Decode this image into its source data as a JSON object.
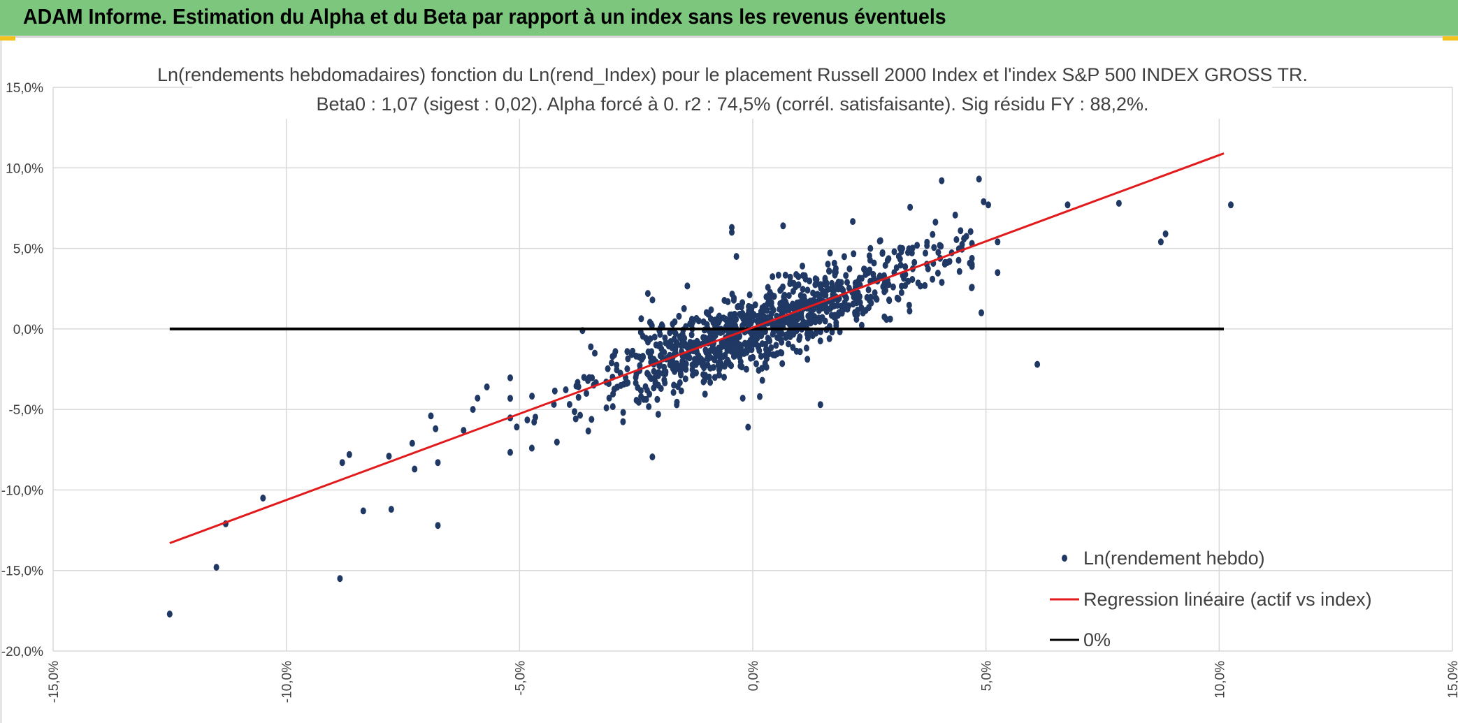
{
  "header": {
    "title": "ADAM Informe. Estimation du Alpha et du Beta par rapport à un index sans les revenus éventuels"
  },
  "colors": {
    "header_bg": "#7dc67d",
    "points": "#203864",
    "regression": "#e31a1c",
    "zero_line": "#000000",
    "grid": "#d9d9d9",
    "accent": "#f2c21b"
  },
  "chart_data": {
    "type": "scatter",
    "title_line1": "Ln(rendements hebdomadaires) fonction du Ln(rend_Index) pour le placement Russell 2000 Index et l'index S&P 500 INDEX GROSS TR.",
    "title_line2": "Beta0 : 1,07 (sigest : 0,02). Alpha forcé à 0. r2 : 74,5% (corrél. satisfaisante). Sig résidu FY : 88,2%.",
    "xlim": [
      -0.15,
      0.15
    ],
    "ylim": [
      -0.2,
      0.15
    ],
    "x_ticks": [
      -0.15,
      -0.1,
      -0.05,
      0.0,
      0.05,
      0.1,
      0.15
    ],
    "x_tick_labels": [
      "-15,0%",
      "-10,0%",
      "-5,0%",
      "0,0%",
      "5,0%",
      "10,0%",
      "15,0%"
    ],
    "y_ticks": [
      0.15,
      0.1,
      0.05,
      0.0,
      -0.05,
      -0.1,
      -0.15,
      -0.2
    ],
    "y_tick_labels": [
      "15,0%",
      "10,0%",
      "5,0%",
      "0,0%",
      "-5,0%",
      "-10,0%",
      "-15,0%",
      "-20,0%"
    ],
    "grid": true,
    "legend_position": "bottom-right",
    "series": [
      {
        "name": "Ln(rendement hebdo)",
        "kind": "scatter",
        "outliers": [
          [
            -0.125,
            -0.177
          ],
          [
            -0.115,
            -0.148
          ],
          [
            -0.113,
            -0.121
          ],
          [
            -0.105,
            -0.105
          ],
          [
            -0.0885,
            -0.155
          ],
          [
            -0.0835,
            -0.113
          ],
          [
            -0.0775,
            -0.112
          ],
          [
            -0.0675,
            -0.122
          ],
          [
            -0.088,
            -0.083
          ],
          [
            -0.0865,
            -0.078
          ],
          [
            -0.078,
            -0.079
          ],
          [
            -0.073,
            -0.071
          ],
          [
            -0.0725,
            -0.087
          ],
          [
            -0.069,
            -0.054
          ],
          [
            -0.068,
            -0.062
          ],
          [
            -0.0675,
            -0.083
          ],
          [
            -0.062,
            -0.063
          ],
          [
            -0.06,
            -0.05
          ],
          [
            -0.059,
            -0.043
          ],
          [
            -0.057,
            -0.036
          ],
          [
            -0.0225,
            0.022
          ],
          [
            -0.0215,
            0.018
          ],
          [
            -0.0045,
            0.063
          ],
          [
            -0.0045,
            0.06
          ],
          [
            -0.0035,
            0.045
          ],
          [
            0.0065,
            0.064
          ],
          [
            -0.001,
            -0.061
          ],
          [
            0.0015,
            -0.042
          ],
          [
            0.0145,
            -0.047
          ],
          [
            0.0405,
            0.092
          ],
          [
            0.0485,
            0.093
          ],
          [
            0.0495,
            0.079
          ],
          [
            0.0505,
            0.077
          ],
          [
            0.0525,
            0.054
          ],
          [
            0.0525,
            0.035
          ],
          [
            0.049,
            0.01
          ],
          [
            0.061,
            -0.022
          ],
          [
            0.0785,
            0.078
          ],
          [
            0.0875,
            0.054
          ],
          [
            0.0885,
            0.059
          ],
          [
            0.1025,
            0.077
          ],
          [
            -0.0365,
            -0.001
          ],
          [
            -0.024,
            -0.002
          ],
          [
            0.0675,
            0.077
          ]
        ],
        "cloud": {
          "count": 1000,
          "x_mean": 0.002,
          "x_std": 0.019,
          "beta": 1.07,
          "residual_std": 0.012,
          "seed": 7
        }
      },
      {
        "name": "Regression linéaire (actif vs index)",
        "kind": "line",
        "x": [
          -0.125,
          0.101
        ],
        "y": [
          -0.133,
          0.109
        ]
      },
      {
        "name": "0%",
        "kind": "line",
        "x": [
          -0.125,
          0.101
        ],
        "y": [
          0.0,
          0.0
        ]
      }
    ]
  }
}
